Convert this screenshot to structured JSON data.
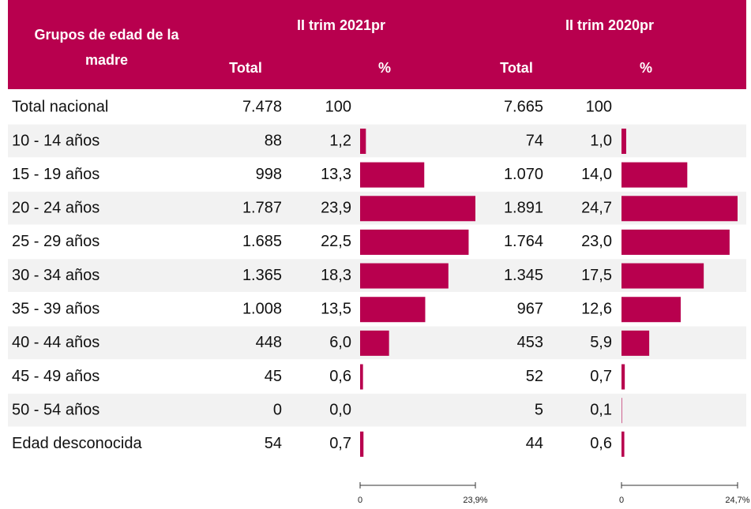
{
  "header": {
    "label_lines": [
      "Grupos de edad de la",
      "madre"
    ],
    "periods": [
      "II trim 2021pr",
      "II trim 2020pr"
    ],
    "subcolumns": [
      "Total",
      "%"
    ]
  },
  "table": {
    "rows": [
      {
        "label": "Total nacional",
        "total_2021": "7.478",
        "pct_2021": {
          "value": 100,
          "label": "100"
        },
        "total_2020": "7.665",
        "pct_2020": {
          "value": 100,
          "label": "100"
        },
        "bar": false
      },
      {
        "label": "10 - 14 años",
        "total_2021": "88",
        "pct_2021": {
          "value": 1.2,
          "label": "1,2"
        },
        "total_2020": "74",
        "pct_2020": {
          "value": 1.0,
          "label": "1,0"
        }
      },
      {
        "label": "15 - 19 años",
        "total_2021": "998",
        "pct_2021": {
          "value": 13.3,
          "label": "13,3"
        },
        "total_2020": "1.070",
        "pct_2020": {
          "value": 14.0,
          "label": "14,0"
        }
      },
      {
        "label": "20 - 24 años",
        "total_2021": "1.787",
        "pct_2021": {
          "value": 23.9,
          "label": "23,9"
        },
        "total_2020": "1.891",
        "pct_2020": {
          "value": 24.7,
          "label": "24,7"
        }
      },
      {
        "label": "25 - 29 años",
        "total_2021": "1.685",
        "pct_2021": {
          "value": 22.5,
          "label": "22,5"
        },
        "total_2020": "1.764",
        "pct_2020": {
          "value": 23.0,
          "label": "23,0"
        }
      },
      {
        "label": "30 - 34 años",
        "total_2021": "1.365",
        "pct_2021": {
          "value": 18.3,
          "label": "18,3"
        },
        "total_2020": "1.345",
        "pct_2020": {
          "value": 17.5,
          "label": "17,5"
        }
      },
      {
        "label": "35 - 39 años",
        "total_2021": "1.008",
        "pct_2021": {
          "value": 13.5,
          "label": "13,5"
        },
        "total_2020": "967",
        "pct_2020": {
          "value": 12.6,
          "label": "12,6"
        }
      },
      {
        "label": "40 - 44 años",
        "total_2021": "448",
        "pct_2021": {
          "value": 6.0,
          "label": "6,0"
        },
        "total_2020": "453",
        "pct_2020": {
          "value": 5.9,
          "label": "5,9"
        }
      },
      {
        "label": "45 - 49 años",
        "total_2021": "45",
        "pct_2021": {
          "value": 0.6,
          "label": "0,6"
        },
        "total_2020": "52",
        "pct_2020": {
          "value": 0.7,
          "label": "0,7"
        }
      },
      {
        "label": "50 - 54 años",
        "total_2021": "0",
        "pct_2021": {
          "value": 0.0,
          "label": "0,0"
        },
        "total_2020": "5",
        "pct_2020": {
          "value": 0.1,
          "label": "0,1"
        }
      },
      {
        "label": "Edad desconocida",
        "total_2021": "54",
        "pct_2021": {
          "value": 0.7,
          "label": "0,7"
        },
        "total_2020": "44",
        "pct_2020": {
          "value": 0.6,
          "label": "0,6"
        }
      }
    ]
  },
  "scales": {
    "pct_2021": [
      0,
      {
        "value": 23.9,
        "label": "23,9%"
      }
    ],
    "pct_2020": [
      0,
      {
        "value": 24.7,
        "label": "24,7%"
      }
    ]
  },
  "bar_color": "#b8004e",
  "stripe_color": "#f2f2f2"
}
